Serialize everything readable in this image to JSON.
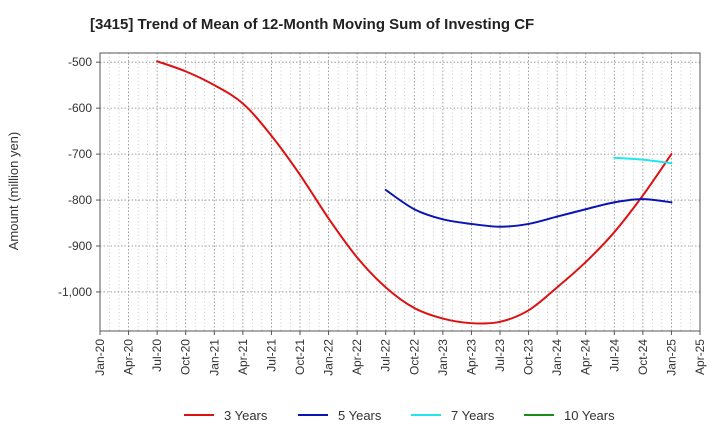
{
  "chart_data": {
    "type": "line",
    "title": "[3415]  Trend of Mean of 12-Month Moving Sum of Investing CF",
    "xlabel": "",
    "ylabel": "Amount (million yen)",
    "ylim": [
      -1085,
      -480
    ],
    "yticks": [
      -500,
      -600,
      -700,
      -800,
      -900,
      -1000
    ],
    "ytick_labels": [
      "-500",
      "-600",
      "-700",
      "-800",
      "-900",
      "-1,000"
    ],
    "xticks": [
      "Jan-20",
      "Apr-20",
      "Jul-20",
      "Oct-20",
      "Jan-21",
      "Apr-21",
      "Jul-21",
      "Oct-21",
      "Jan-22",
      "Apr-22",
      "Jul-22",
      "Oct-22",
      "Jan-23",
      "Apr-23",
      "Jul-23",
      "Oct-23",
      "Jan-24",
      "Apr-24",
      "Jul-24",
      "Oct-24",
      "Jan-25",
      "Apr-25"
    ],
    "x_range": [
      "Jan-20",
      "Apr-25"
    ],
    "grid": true,
    "legend_position": "bottom",
    "series": [
      {
        "name": "3 Years",
        "color": "#dd1111",
        "x": [
          "Jul-20",
          "Oct-20",
          "Jan-21",
          "Apr-21",
          "Jul-21",
          "Oct-21",
          "Jan-22",
          "Apr-22",
          "Jul-22",
          "Oct-22",
          "Jan-23",
          "Apr-23",
          "Jul-23",
          "Oct-23",
          "Jan-24",
          "Apr-24",
          "Jul-24",
          "Oct-24",
          "Jan-25"
        ],
        "values": [
          -498,
          -520,
          -550,
          -590,
          -660,
          -745,
          -840,
          -925,
          -990,
          -1035,
          -1058,
          -1068,
          -1065,
          -1040,
          -990,
          -935,
          -870,
          -790,
          -700
        ]
      },
      {
        "name": "5 Years",
        "color": "#0a14b4",
        "x": [
          "Jul-22",
          "Oct-22",
          "Jan-23",
          "Apr-23",
          "Jul-23",
          "Oct-23",
          "Jan-24",
          "Apr-24",
          "Jul-24",
          "Oct-24",
          "Jan-25"
        ],
        "values": [
          -778,
          -820,
          -842,
          -852,
          -858,
          -852,
          -836,
          -820,
          -805,
          -798,
          -805
        ]
      },
      {
        "name": "7 Years",
        "color": "#22e6ee",
        "x": [
          "Jul-24",
          "Oct-24",
          "Jan-25"
        ],
        "values": [
          -708,
          -712,
          -720
        ]
      },
      {
        "name": "10 Years",
        "color": "#1a8a1a",
        "x": [],
        "values": []
      }
    ]
  }
}
